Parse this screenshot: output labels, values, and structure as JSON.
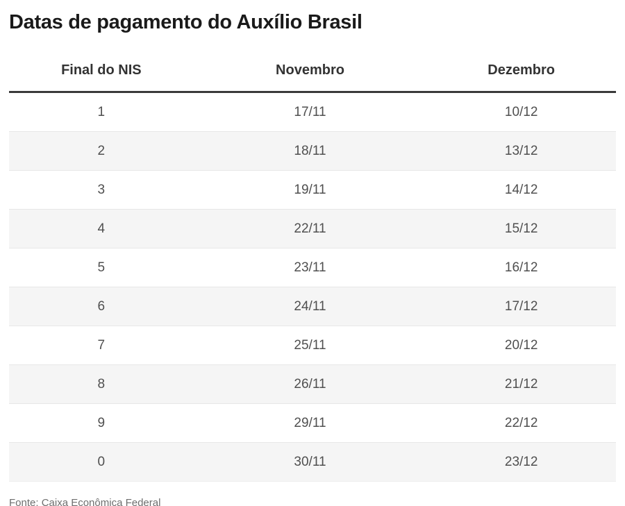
{
  "title": "Datas de pagamento do Auxílio Brasil",
  "table": {
    "headers": [
      "Final do NIS",
      "Novembro",
      "Dezembro"
    ],
    "rows": [
      [
        "1",
        "17/11",
        "10/12"
      ],
      [
        "2",
        "18/11",
        "13/12"
      ],
      [
        "3",
        "19/11",
        "14/12"
      ],
      [
        "4",
        "22/11",
        "15/12"
      ],
      [
        "5",
        "23/11",
        "16/12"
      ],
      [
        "6",
        "24/11",
        "17/12"
      ],
      [
        "7",
        "25/11",
        "20/12"
      ],
      [
        "8",
        "26/11",
        "21/12"
      ],
      [
        "9",
        "29/11",
        "22/12"
      ],
      [
        "0",
        "30/11",
        "23/12"
      ]
    ]
  },
  "source": "Fonte: Caixa Econômica Federal",
  "colors": {
    "title_text": "#1a1a1a",
    "header_text": "#333333",
    "header_rule": "#3a3a3a",
    "cell_text": "#4f4f4f",
    "alt_row_bg": "#f5f5f5",
    "row_border": "#e7e7e7",
    "source_text": "#6e6e6e",
    "page_bg": "#ffffff"
  },
  "chart_data": {
    "type": "table",
    "title": "Datas de pagamento do Auxílio Brasil",
    "columns": [
      "Final do NIS",
      "Novembro",
      "Dezembro"
    ],
    "rows": [
      [
        "1",
        "17/11",
        "10/12"
      ],
      [
        "2",
        "18/11",
        "13/12"
      ],
      [
        "3",
        "19/11",
        "14/12"
      ],
      [
        "4",
        "22/11",
        "15/12"
      ],
      [
        "5",
        "23/11",
        "16/12"
      ],
      [
        "6",
        "24/11",
        "17/12"
      ],
      [
        "7",
        "25/11",
        "20/12"
      ],
      [
        "8",
        "26/11",
        "21/12"
      ],
      [
        "9",
        "29/11",
        "22/12"
      ],
      [
        "0",
        "30/11",
        "23/12"
      ]
    ],
    "source": "Fonte: Caixa Econômica Federal",
    "layout_hints": {
      "striped_rows": true,
      "stripe_on": "even rows (2nd, 4th, ...)",
      "all_columns_center_aligned": true,
      "thick_rule_under_header": true
    }
  }
}
